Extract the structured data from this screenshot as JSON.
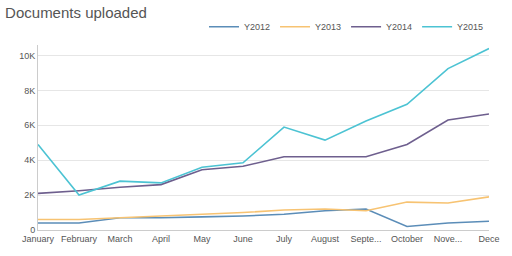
{
  "chart_data": {
    "type": "line",
    "title": "Documents uploaded",
    "categories": [
      "January",
      "February",
      "March",
      "April",
      "May",
      "June",
      "July",
      "August",
      "Septe...",
      "October",
      "Nove...",
      "Dece"
    ],
    "series": [
      {
        "name": "Y2012",
        "color": "#5b8db8",
        "values": [
          400,
          400,
          700,
          700,
          750,
          800,
          900,
          1100,
          1200,
          200,
          400,
          500
        ]
      },
      {
        "name": "Y2013",
        "color": "#f7c372",
        "values": [
          600,
          600,
          700,
          800,
          900,
          1000,
          1150,
          1200,
          1100,
          1600,
          1550,
          1900
        ]
      },
      {
        "name": "Y2014",
        "color": "#6e5f8e",
        "values": [
          2100,
          2250,
          2450,
          2600,
          3450,
          3650,
          4200,
          4200,
          4200,
          4900,
          6300,
          6650
        ]
      },
      {
        "name": "Y2015",
        "color": "#4cc3d3",
        "values": [
          4900,
          2000,
          2800,
          2700,
          3600,
          3850,
          5900,
          5150,
          6250,
          7200,
          9250,
          10400
        ]
      }
    ],
    "ylim": [
      0,
      10600
    ],
    "yticks": [
      0,
      {
        "value": 2000,
        "label": "2K"
      },
      {
        "value": 4000,
        "label": "4K"
      },
      {
        "value": 6000,
        "label": "6K"
      },
      {
        "value": 8000,
        "label": "8K"
      },
      {
        "value": 10000,
        "label": "10K"
      }
    ],
    "grid": true,
    "legend": "top-right"
  }
}
